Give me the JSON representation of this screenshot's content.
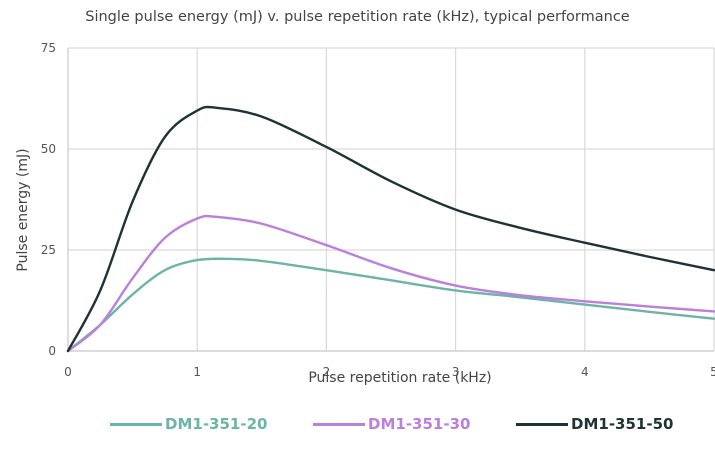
{
  "chart_data": {
    "type": "line",
    "title": "Single pulse energy (mJ) v. pulse repetition rate (kHz), typical performance",
    "xlabel": "Pulse repetition rate (kHz)",
    "ylabel": "Pulse energy (mJ)",
    "xlim": [
      0,
      5
    ],
    "ylim": [
      0,
      75
    ],
    "x_ticks": [
      0,
      1,
      2,
      3,
      4,
      5
    ],
    "y_ticks": [
      0,
      25,
      50,
      75
    ],
    "x_tick_labels": [
      "0",
      "1",
      "2",
      "3",
      "4",
      "5"
    ],
    "y_tick_labels": [
      "0",
      "25",
      "50",
      "75"
    ],
    "grid": true,
    "legend_position": "bottom",
    "series": [
      {
        "name": "DM1-351-20",
        "color": "#6cb5a6",
        "x": [
          0,
          0.25,
          0.5,
          0.75,
          1.0,
          1.25,
          1.5,
          2.0,
          2.5,
          3.0,
          3.5,
          4.0,
          4.5,
          5.0
        ],
        "y": [
          0,
          6.5,
          14,
          20,
          22.5,
          22.8,
          22.3,
          20,
          17.5,
          15,
          13.3,
          11.5,
          9.7,
          8
        ]
      },
      {
        "name": "DM1-351-30",
        "color": "#bb80dd",
        "x": [
          0,
          0.25,
          0.5,
          0.75,
          1.0,
          1.15,
          1.5,
          2.0,
          2.5,
          3.0,
          3.5,
          4.0,
          4.5,
          5.0
        ],
        "y": [
          0,
          6.5,
          18,
          28,
          32.8,
          33.2,
          31.5,
          26.2,
          20.5,
          16.2,
          13.8,
          12.3,
          11,
          9.8
        ]
      },
      {
        "name": "DM1-351-50",
        "color": "#1d3432",
        "x": [
          0,
          0.25,
          0.5,
          0.75,
          1.0,
          1.15,
          1.5,
          2.0,
          2.5,
          3.0,
          3.5,
          4.0,
          4.5,
          5.0
        ],
        "y": [
          0,
          15,
          37,
          53,
          59.5,
          60.2,
          58,
          50.5,
          42,
          35,
          30.5,
          26.8,
          23.3,
          20
        ]
      }
    ]
  }
}
